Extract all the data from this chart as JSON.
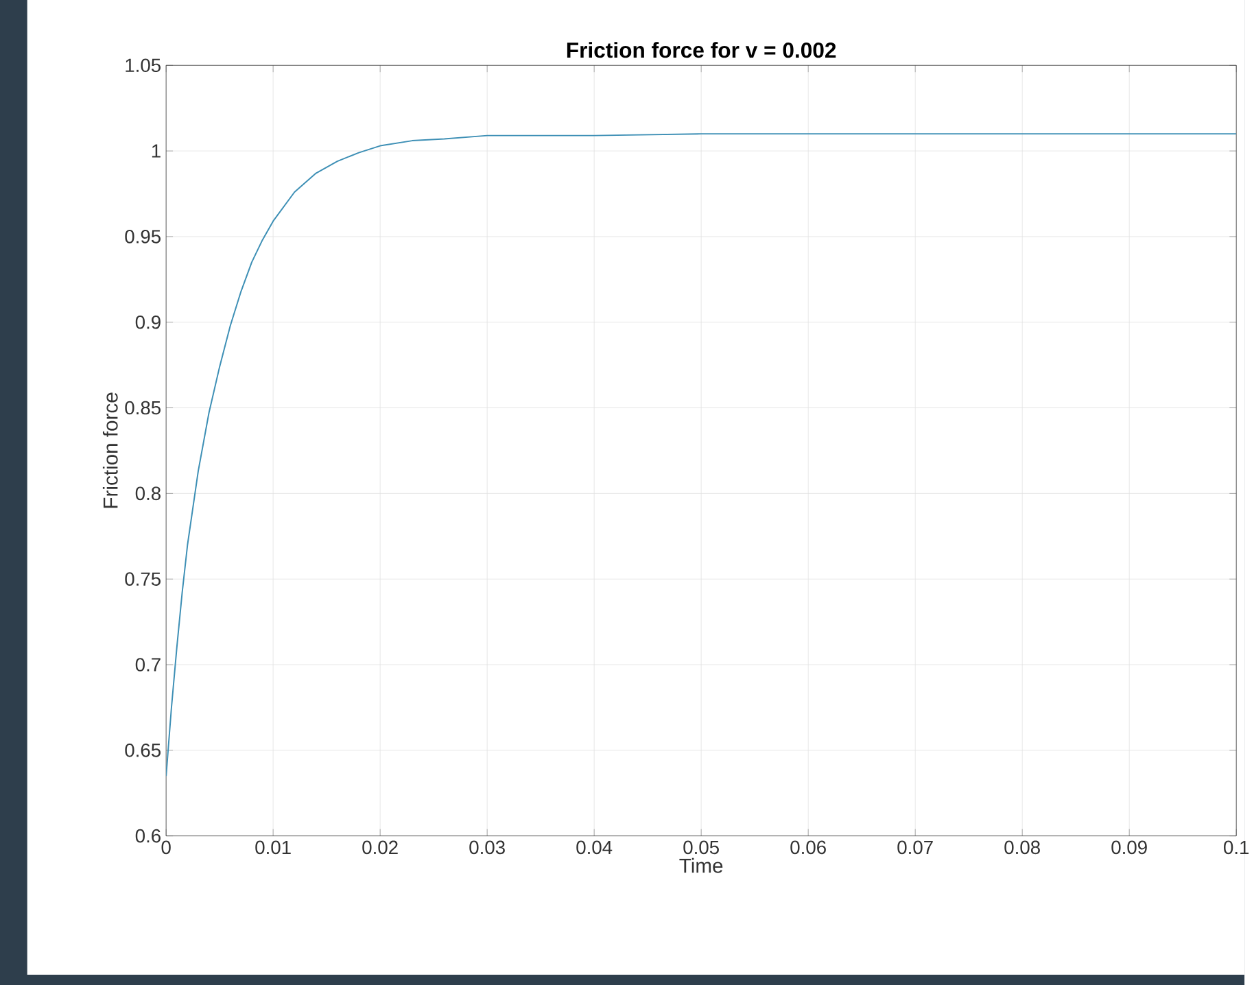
{
  "chart_data": {
    "type": "line",
    "title": "Friction force for v = 0.002",
    "xlabel": "Time",
    "ylabel": "Friction force",
    "xlim": [
      0,
      0.1
    ],
    "ylim": [
      0.6,
      1.05
    ],
    "xticks": [
      0,
      0.01,
      0.02,
      0.03,
      0.04,
      0.05,
      0.06,
      0.07,
      0.08,
      0.09,
      0.1
    ],
    "yticks": [
      0.6,
      0.65,
      0.7,
      0.75,
      0.8,
      0.85,
      0.9,
      0.95,
      1,
      1.05
    ],
    "grid": true,
    "marker": "none",
    "line_style": "solid",
    "series": [
      {
        "color": "#3d8fb5",
        "x": [
          0,
          0.0005,
          0.001,
          0.0015,
          0.002,
          0.003,
          0.004,
          0.005,
          0.006,
          0.007,
          0.008,
          0.009,
          0.01,
          0.012,
          0.014,
          0.016,
          0.018,
          0.02,
          0.023,
          0.026,
          0.03,
          0.035,
          0.04,
          0.05,
          0.1
        ],
        "values": [
          0.635,
          0.675,
          0.71,
          0.742,
          0.77,
          0.813,
          0.847,
          0.874,
          0.898,
          0.918,
          0.935,
          0.948,
          0.959,
          0.976,
          0.987,
          0.994,
          0.999,
          1.003,
          1.006,
          1.007,
          1.009,
          1.009,
          1.009,
          1.01,
          1.01
        ]
      }
    ]
  }
}
